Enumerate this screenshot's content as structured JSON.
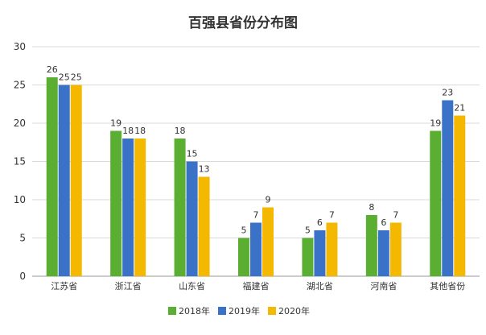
{
  "chart_data": {
    "type": "bar",
    "title": "百强县省份分布图",
    "categories": [
      "江苏省",
      "浙江省",
      "山东省",
      "福建省",
      "湖北省",
      "河南省",
      "其他省份"
    ],
    "series": [
      {
        "name": "2018年",
        "color": "#5aae32",
        "values": [
          26,
          19,
          18,
          5,
          5,
          8,
          19
        ]
      },
      {
        "name": "2019年",
        "color": "#3a72c8",
        "values": [
          25,
          18,
          15,
          7,
          6,
          6,
          23
        ]
      },
      {
        "name": "2020年",
        "color": "#f5b800",
        "values": [
          25,
          18,
          13,
          9,
          7,
          7,
          21
        ]
      }
    ],
    "ylim": [
      0,
      30
    ],
    "yticks": [
      0,
      5,
      10,
      15,
      20,
      25,
      30
    ],
    "grid": true,
    "legend_position": "bottom"
  }
}
